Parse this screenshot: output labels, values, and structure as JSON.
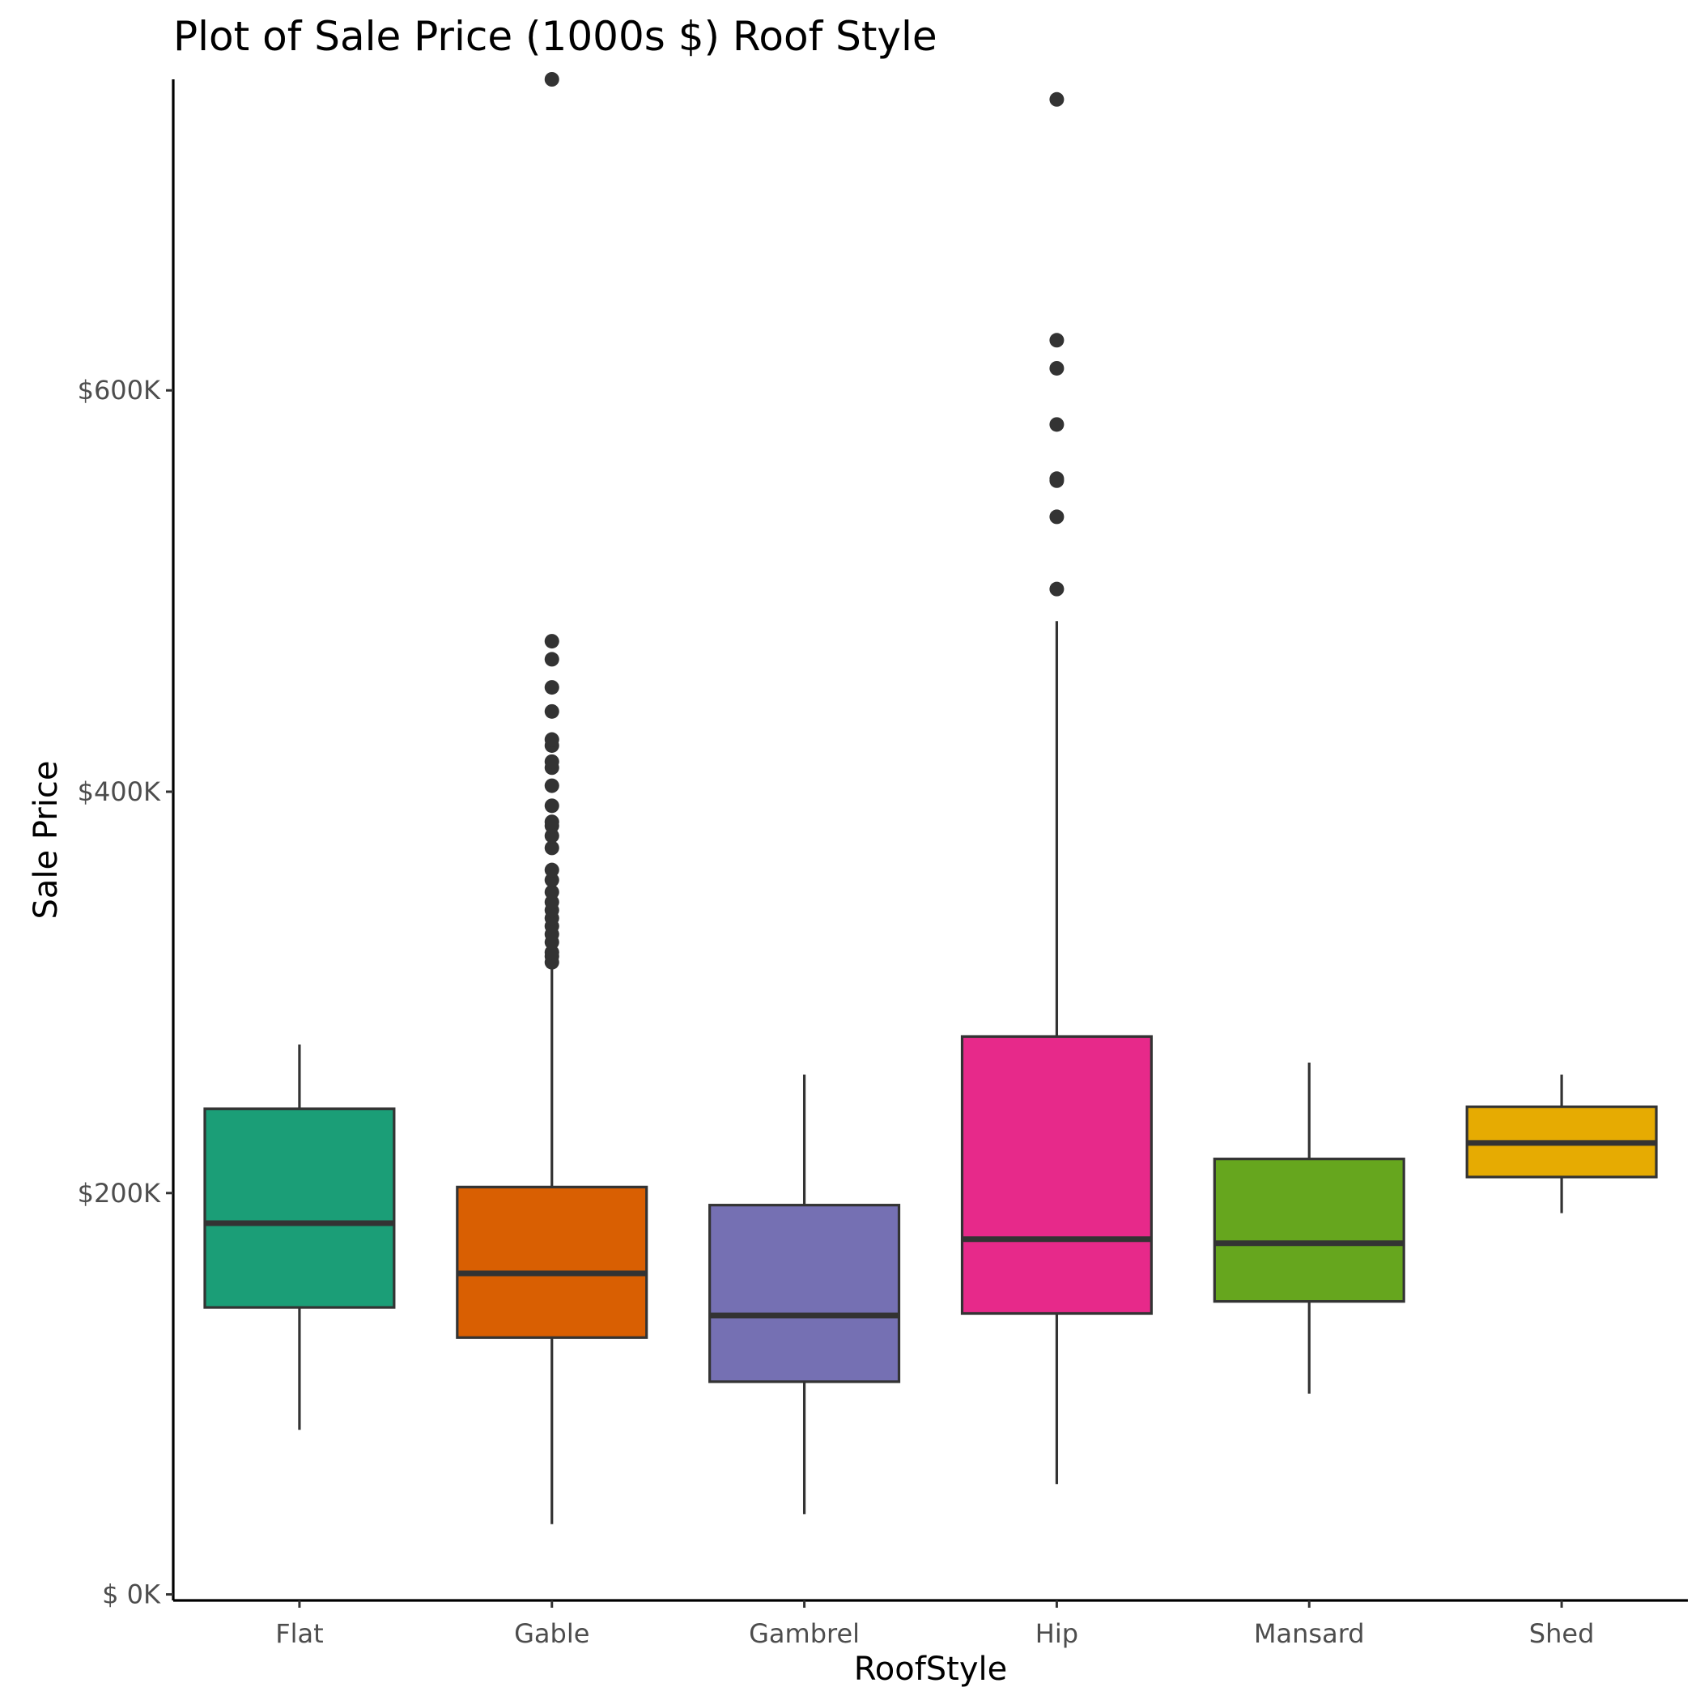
{
  "chart_data": {
    "type": "boxplot",
    "title": "Plot of Sale Price (1000s $) Roof Style",
    "xlabel": "RoofStyle",
    "ylabel": "Sale Price",
    "ylim": [
      -3,
      755
    ],
    "yticks": [
      {
        "value": 0,
        "label": "$  0K"
      },
      {
        "value": 200,
        "label": "$200K"
      },
      {
        "value": 400,
        "label": "$400K"
      },
      {
        "value": 600,
        "label": "$600K"
      }
    ],
    "legend": "none",
    "grid": false,
    "categories": [
      "Flat",
      "Gable",
      "Gambrel",
      "Hip",
      "Mansard",
      "Shed"
    ],
    "boxes": [
      {
        "category": "Flat",
        "color": "#1b9e77",
        "lower_whisker": 82,
        "q1": 143,
        "median": 185,
        "q3": 242,
        "upper_whisker": 274,
        "outliers": []
      },
      {
        "category": "Gable",
        "color": "#d95f02",
        "lower_whisker": 35,
        "q1": 128,
        "median": 160,
        "q3": 203,
        "upper_whisker": 314,
        "outliers": [
          315,
          318,
          320,
          325,
          329,
          333,
          337,
          341,
          345,
          350,
          356,
          361,
          372,
          378,
          383,
          385,
          393,
          403,
          412,
          415,
          423,
          426,
          440,
          452,
          466,
          475,
          755
        ]
      },
      {
        "category": "Gambrel",
        "color": "#7570b3",
        "lower_whisker": 40,
        "q1": 106,
        "median": 139,
        "q3": 194,
        "upper_whisker": 259,
        "outliers": []
      },
      {
        "category": "Hip",
        "color": "#e7298a",
        "lower_whisker": 55,
        "q1": 140,
        "median": 177,
        "q3": 278,
        "upper_whisker": 485,
        "outliers": [
          501,
          537,
          555,
          556,
          583,
          611,
          625,
          745
        ]
      },
      {
        "category": "Mansard",
        "color": "#66a61e",
        "lower_whisker": 100,
        "q1": 146,
        "median": 175,
        "q3": 217,
        "upper_whisker": 265,
        "outliers": []
      },
      {
        "category": "Shed",
        "color": "#e6ab02",
        "lower_whisker": 190,
        "q1": 208,
        "median": 225,
        "q3": 243,
        "upper_whisker": 259,
        "outliers": []
      }
    ]
  }
}
